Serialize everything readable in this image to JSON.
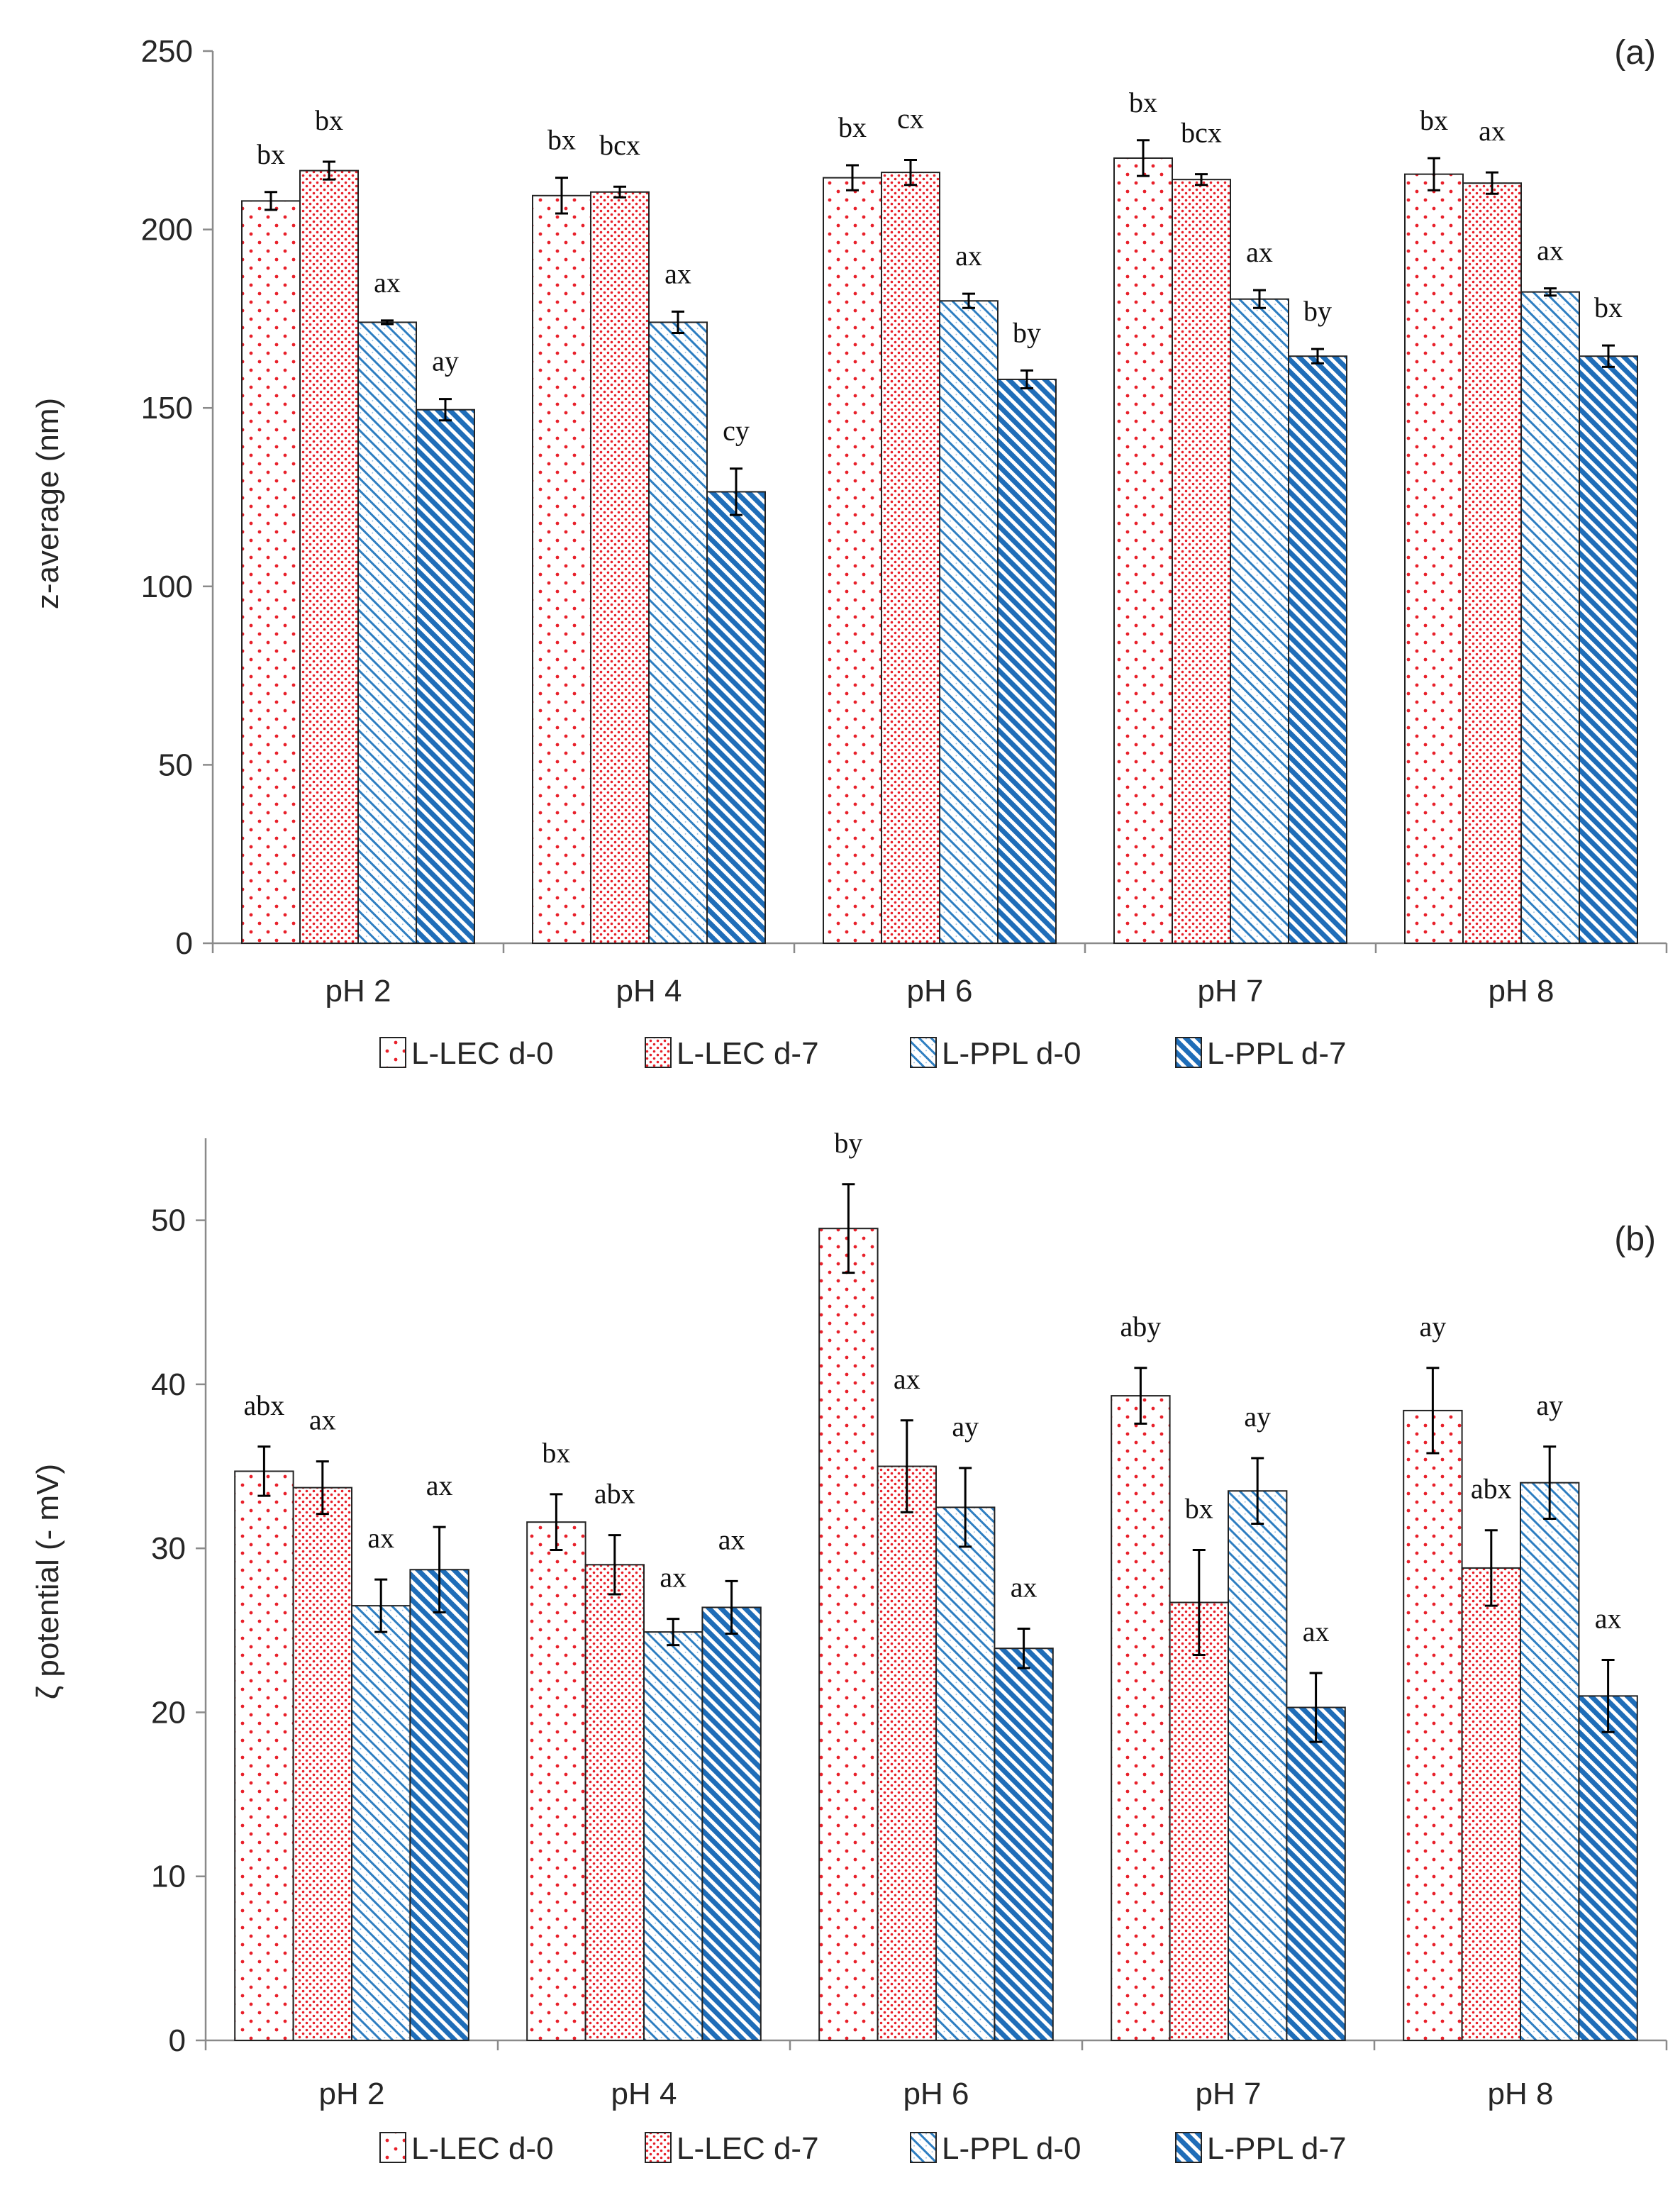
{
  "chart_data": [
    {
      "type": "bar",
      "panel_label": "(a)",
      "ylabel": "z-average (nm)",
      "xlabel": "",
      "ylim": [
        0,
        250
      ],
      "yticks": [
        0,
        50,
        100,
        150,
        200,
        250
      ],
      "categories": [
        "pH 2",
        "pH 4",
        "pH 6",
        "pH 7",
        "pH 8"
      ],
      "legend_position": "bottom",
      "series": [
        {
          "name": "L-LEC d-0",
          "pattern": "sparse-dots",
          "color": "#e8202a",
          "values": [
            208,
            209.5,
            214.5,
            220,
            215.5
          ],
          "errors": [
            2.5,
            5,
            3.5,
            5,
            4.5
          ],
          "labels": [
            "bx",
            "bx",
            "bx",
            "bx",
            "bx"
          ]
        },
        {
          "name": "L-LEC d-7",
          "pattern": "dense-dots",
          "color": "#e8202a",
          "values": [
            216.5,
            210.5,
            216,
            214,
            213
          ],
          "errors": [
            2.5,
            1.5,
            3.5,
            1.5,
            3
          ],
          "labels": [
            "bx",
            "bcx",
            "cx",
            "bcx",
            "ax"
          ]
        },
        {
          "name": "L-PPL d-0",
          "pattern": "light-diag",
          "color": "#2e7ec1",
          "values": [
            174,
            174,
            180,
            180.5,
            182.5
          ],
          "errors": [
            0.5,
            3,
            2,
            2.5,
            1
          ],
          "labels": [
            "ax",
            "ax",
            "ax",
            "ax",
            "ax"
          ]
        },
        {
          "name": "L-PPL d-7",
          "pattern": "dense-diag",
          "color": "#2e7ec1",
          "values": [
            149.5,
            126.5,
            158,
            164.5,
            164.5
          ],
          "errors": [
            3,
            6.5,
            2.5,
            2,
            3
          ],
          "labels": [
            "ay",
            "cy",
            "by",
            "by",
            "bx"
          ]
        }
      ]
    },
    {
      "type": "bar",
      "panel_label": "(b)",
      "ylabel": "ζ potential (- mV)",
      "xlabel": "",
      "ylim": [
        0,
        55
      ],
      "yticks": [
        0,
        10,
        20,
        30,
        40,
        50
      ],
      "categories": [
        "pH 2",
        "pH 4",
        "pH 6",
        "pH 7",
        "pH 8"
      ],
      "legend_position": "bottom",
      "series": [
        {
          "name": "L-LEC d-0",
          "pattern": "sparse-dots",
          "color": "#e8202a",
          "values": [
            34.7,
            31.6,
            49.5,
            39.3,
            38.4
          ],
          "errors": [
            1.5,
            1.7,
            2.7,
            1.7,
            2.6
          ],
          "labels": [
            "abx",
            "bx",
            "by",
            "aby",
            "ay"
          ]
        },
        {
          "name": "L-LEC d-7",
          "pattern": "dense-dots",
          "color": "#e8202a",
          "values": [
            33.7,
            29,
            35,
            26.7,
            28.8
          ],
          "errors": [
            1.6,
            1.8,
            2.8,
            3.2,
            2.3
          ],
          "labels": [
            "ax",
            "abx",
            "ax",
            "bx",
            "abx"
          ]
        },
        {
          "name": "L-PPL d-0",
          "pattern": "light-diag",
          "color": "#2e7ec1",
          "values": [
            26.5,
            24.9,
            32.5,
            33.5,
            34
          ],
          "errors": [
            1.6,
            0.8,
            2.4,
            2,
            2.2
          ],
          "labels": [
            "ax",
            "ax",
            "ay",
            "ay",
            "ay"
          ]
        },
        {
          "name": "L-PPL d-7",
          "pattern": "dense-diag",
          "color": "#2e7ec1",
          "values": [
            28.7,
            26.4,
            23.9,
            20.3,
            21
          ],
          "errors": [
            2.6,
            1.6,
            1.2,
            2.1,
            2.2
          ],
          "labels": [
            "ax",
            "ax",
            "ax",
            "ax",
            "ax"
          ]
        }
      ]
    }
  ]
}
